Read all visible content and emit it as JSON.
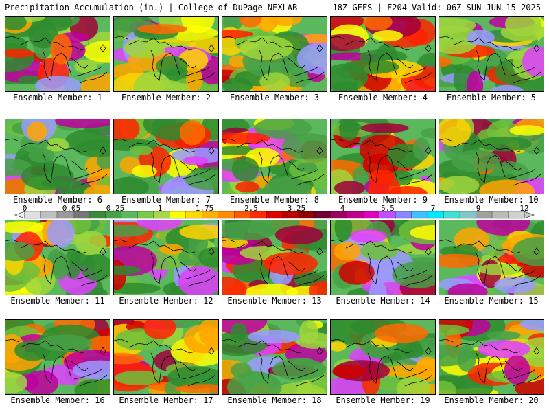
{
  "header": {
    "left": "Precipitation Accumulation (in.) | College of DuPage NEXLAB",
    "right": "18Z GEFS | F204 Valid: 06Z SUN JUN 15 2025"
  },
  "members": [
    {
      "label": "Ensemble Member: 1"
    },
    {
      "label": "Ensemble Member: 2"
    },
    {
      "label": "Ensemble Member: 3"
    },
    {
      "label": "Ensemble Member: 4"
    },
    {
      "label": "Ensemble Member: 5"
    },
    {
      "label": "Ensemble Member: 6"
    },
    {
      "label": "Ensemble Member: 7"
    },
    {
      "label": "Ensemble Member: 8"
    },
    {
      "label": "Ensemble Member: 9"
    },
    {
      "label": "Ensemble Member: 10"
    },
    {
      "label": "Ensemble Member: 11"
    },
    {
      "label": "Ensemble Member: 12"
    },
    {
      "label": "Ensemble Member: 13"
    },
    {
      "label": "Ensemble Member: 14"
    },
    {
      "label": "Ensemble Member: 15"
    },
    {
      "label": "Ensemble Member: 16"
    },
    {
      "label": "Ensemble Member: 17"
    },
    {
      "label": "Ensemble Member: 18"
    },
    {
      "label": "Ensemble Member: 19"
    },
    {
      "label": "Ensemble Member: 20"
    }
  ],
  "colorbar": {
    "labels": [
      "0",
      "0.05",
      "0.25",
      "1",
      "1.75",
      "2.5",
      "3.25",
      "4",
      "5.5",
      "7",
      "9",
      "12"
    ],
    "colors": [
      "#e0e0e0",
      "#c0c0c0",
      "#9a9a9a",
      "#777777",
      "#3a8a3a",
      "#46a046",
      "#5cb85c",
      "#7cc84c",
      "#a8d848",
      "#ffff00",
      "#ffd800",
      "#ffb000",
      "#ff8c00",
      "#ff5a00",
      "#ff2a00",
      "#e00000",
      "#b80000",
      "#900000",
      "#700030",
      "#9a0060",
      "#c0008a",
      "#e000c0",
      "#c050ff",
      "#8888ff",
      "#40c0ff",
      "#00e8ff",
      "#40e0d0",
      "#80c8c8",
      "#a0a0a0",
      "#bababa",
      "#d0d0d0"
    ]
  }
}
